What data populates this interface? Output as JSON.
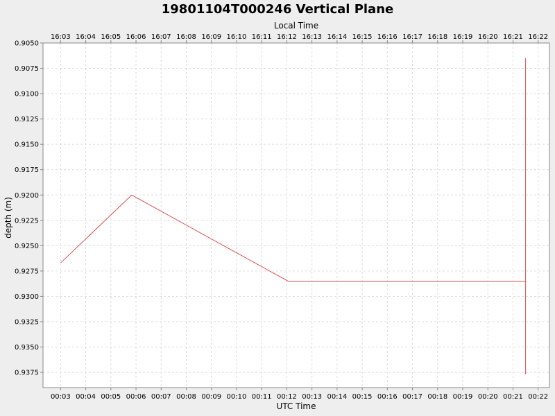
{
  "chart_data": {
    "type": "line",
    "title": "19801104T000246 Vertical Plane",
    "top_axis_label": "Local Time",
    "xlabel": "UTC Time",
    "ylabel": "depth (m)",
    "y_inverted": true,
    "ylim": [
      0.905,
      0.939
    ],
    "xlim_minutes": [
      2.3,
      22.45
    ],
    "bottom_ticks": [
      {
        "label": "00:03",
        "t": 3
      },
      {
        "label": "00:04",
        "t": 4
      },
      {
        "label": "00:05",
        "t": 5
      },
      {
        "label": "00:06",
        "t": 6
      },
      {
        "label": "00:07",
        "t": 7
      },
      {
        "label": "00:08",
        "t": 8
      },
      {
        "label": "00:09",
        "t": 9
      },
      {
        "label": "00:10",
        "t": 10
      },
      {
        "label": "00:11",
        "t": 11
      },
      {
        "label": "00:12",
        "t": 12
      },
      {
        "label": "00:13",
        "t": 13
      },
      {
        "label": "00:14",
        "t": 14
      },
      {
        "label": "00:15",
        "t": 15
      },
      {
        "label": "00:16",
        "t": 16
      },
      {
        "label": "00:17",
        "t": 17
      },
      {
        "label": "00:18",
        "t": 18
      },
      {
        "label": "00:19",
        "t": 19
      },
      {
        "label": "00:20",
        "t": 20
      },
      {
        "label": "00:21",
        "t": 21
      },
      {
        "label": "00:22",
        "t": 22
      }
    ],
    "top_ticks": [
      {
        "label": "16:03",
        "t": 3
      },
      {
        "label": "16:04",
        "t": 4
      },
      {
        "label": "16:05",
        "t": 5
      },
      {
        "label": "16:06",
        "t": 6
      },
      {
        "label": "16:07",
        "t": 7
      },
      {
        "label": "16:08",
        "t": 8
      },
      {
        "label": "16:09",
        "t": 9
      },
      {
        "label": "16:10",
        "t": 10
      },
      {
        "label": "16:11",
        "t": 11
      },
      {
        "label": "16:12",
        "t": 12
      },
      {
        "label": "16:13",
        "t": 13
      },
      {
        "label": "16:14",
        "t": 14
      },
      {
        "label": "16:15",
        "t": 15
      },
      {
        "label": "16:16",
        "t": 16
      },
      {
        "label": "16:17",
        "t": 17
      },
      {
        "label": "16:18",
        "t": 18
      },
      {
        "label": "16:19",
        "t": 19
      },
      {
        "label": "16:20",
        "t": 20
      },
      {
        "label": "16:21",
        "t": 21
      },
      {
        "label": "16:22",
        "t": 22
      }
    ],
    "y_ticks": [
      "0.9050",
      "0.9075",
      "0.9100",
      "0.9125",
      "0.9150",
      "0.9175",
      "0.9200",
      "0.9225",
      "0.9250",
      "0.9275",
      "0.9300",
      "0.9325",
      "0.9350",
      "0.9375"
    ],
    "grid": true,
    "colors": {
      "page_background": "#eeeeee",
      "plot_background": "#ffffff",
      "gridline": "#dddddd",
      "series_line": "#e05050",
      "axis": "#888888"
    },
    "series": [
      {
        "points": [
          {
            "t": 3.0,
            "depth": 0.9267
          },
          {
            "t": 5.83,
            "depth": 0.92
          },
          {
            "t": 12.05,
            "depth": 0.9285
          },
          {
            "t": 21.5,
            "depth": 0.9285
          },
          {
            "t": 21.5,
            "depth": 0.9065
          },
          {
            "t": 21.5,
            "depth": 0.9377
          }
        ]
      }
    ]
  }
}
